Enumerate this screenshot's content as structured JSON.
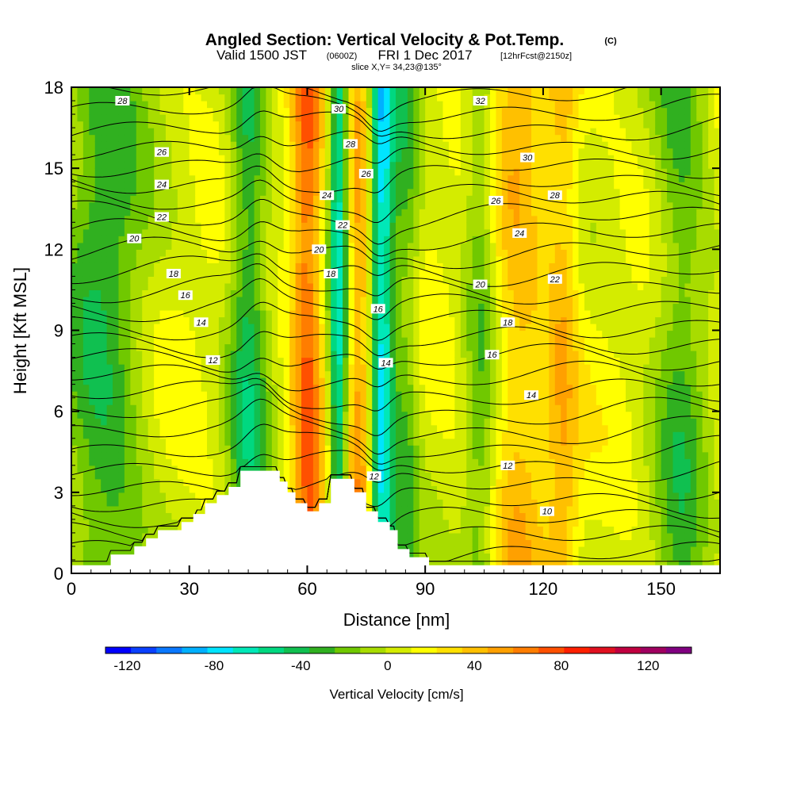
{
  "chart_data": {
    "type": "heatmap",
    "title": {
      "main": "Angled Section: Vertical Velocity & Pot.Temp.",
      "unit": "(C)",
      "valid_a": "Valid 1500 JST",
      "valid_b": "(0600Z)",
      "valid_c": "FRI 1 Dec 2017",
      "valid_d": "[12hrFcst@2150z]",
      "slice": "slice X,Y= 34,23@135°"
    },
    "xlabel": "Distance [nm]",
    "ylabel": "Height [Kft MSL]",
    "xlim": [
      0,
      165
    ],
    "ylim": [
      0,
      18
    ],
    "x_ticks": [
      0,
      30,
      60,
      90,
      120,
      150
    ],
    "y_ticks": [
      0,
      3,
      6,
      9,
      12,
      15,
      18
    ],
    "colorbar": {
      "label": "Vertical Velocity [cm/s]",
      "tick_values": [
        -120,
        -80,
        -40,
        0,
        40,
        80,
        120
      ],
      "tick_labels": [
        "-120",
        "-80",
        "-40",
        "0",
        "40",
        "80",
        "120"
      ],
      "colors": [
        "#0000ff",
        "#0a40ff",
        "#0a78ff",
        "#00b0ff",
        "#00e4ff",
        "#00e8b8",
        "#00d880",
        "#10c050",
        "#30b020",
        "#70c800",
        "#a8dc00",
        "#d4ec00",
        "#ffff00",
        "#ffe000",
        "#ffc000",
        "#ffa000",
        "#ff7d00",
        "#ff5000",
        "#ff2000",
        "#e01020",
        "#c00040",
        "#a00060",
        "#800080"
      ],
      "range": [
        -130,
        140
      ]
    },
    "velocity_columns": [
      {
        "x": 8,
        "w": 11,
        "v": -42
      },
      {
        "x": 45,
        "w": 5,
        "v": -48
      },
      {
        "x": 60,
        "w": 4,
        "v": 60
      },
      {
        "x": 68,
        "w": 2.5,
        "v": -75
      },
      {
        "x": 73,
        "w": 3.5,
        "v": 40
      },
      {
        "x": 79,
        "w": 3,
        "v": -85
      },
      {
        "x": 85,
        "w": 3.5,
        "v": -32
      },
      {
        "x": 104,
        "w": 4,
        "v": -30
      },
      {
        "x": 114,
        "w": 7,
        "v": 30
      },
      {
        "x": 125,
        "w": 4,
        "v": 30
      },
      {
        "x": 155,
        "w": 7,
        "v": -35
      }
    ],
    "terrain": [
      [
        0,
        0.3
      ],
      [
        10,
        0.3
      ],
      [
        10,
        0.7
      ],
      [
        16,
        0.7
      ],
      [
        16,
        1.0
      ],
      [
        19,
        1.0
      ],
      [
        19,
        1.3
      ],
      [
        22,
        1.3
      ],
      [
        22,
        1.6
      ],
      [
        28,
        1.6
      ],
      [
        28,
        1.9
      ],
      [
        31,
        1.9
      ],
      [
        31,
        2.2
      ],
      [
        34,
        2.2
      ],
      [
        34,
        2.6
      ],
      [
        37,
        2.6
      ],
      [
        37,
        2.9
      ],
      [
        40,
        2.9
      ],
      [
        40,
        3.2
      ],
      [
        43,
        3.2
      ],
      [
        43,
        3.8
      ],
      [
        53,
        3.8
      ],
      [
        53,
        3.4
      ],
      [
        55,
        3.4
      ],
      [
        55,
        3.0
      ],
      [
        57,
        3.0
      ],
      [
        57,
        2.6
      ],
      [
        60,
        2.6
      ],
      [
        60,
        2.3
      ],
      [
        63,
        2.3
      ],
      [
        63,
        2.6
      ],
      [
        66,
        2.6
      ],
      [
        66,
        3.5
      ],
      [
        72,
        3.5
      ],
      [
        72,
        3.0
      ],
      [
        75,
        3.0
      ],
      [
        75,
        2.3
      ],
      [
        78,
        2.3
      ],
      [
        78,
        1.9
      ],
      [
        81,
        1.9
      ],
      [
        81,
        1.6
      ],
      [
        83,
        1.6
      ],
      [
        83,
        0.9
      ],
      [
        86,
        0.9
      ],
      [
        86,
        0.6
      ],
      [
        91,
        0.6
      ],
      [
        91,
        0.3
      ],
      [
        165,
        0.3
      ]
    ],
    "contour_levels": [
      8,
      9,
      10,
      11,
      12,
      13,
      14,
      15,
      16,
      17,
      18,
      19,
      20,
      21,
      22,
      23,
      24,
      25,
      26,
      27,
      28,
      29,
      30,
      31,
      32,
      33,
      34,
      35
    ],
    "contour_labels": [
      {
        "text": "28",
        "x": 13,
        "y": 17.5
      },
      {
        "text": "26",
        "x": 23,
        "y": 15.6
      },
      {
        "text": "24",
        "x": 23,
        "y": 14.4
      },
      {
        "text": "22",
        "x": 23,
        "y": 13.2
      },
      {
        "text": "20",
        "x": 16,
        "y": 12.4
      },
      {
        "text": "18",
        "x": 26,
        "y": 11.1
      },
      {
        "text": "16",
        "x": 29,
        "y": 10.3
      },
      {
        "text": "14",
        "x": 33,
        "y": 9.3
      },
      {
        "text": "12",
        "x": 36,
        "y": 7.9
      },
      {
        "text": "30",
        "x": 68,
        "y": 17.2
      },
      {
        "text": "28",
        "x": 71,
        "y": 15.9
      },
      {
        "text": "26",
        "x": 75,
        "y": 14.8
      },
      {
        "text": "24",
        "x": 65,
        "y": 14.0
      },
      {
        "text": "22",
        "x": 69,
        "y": 12.9
      },
      {
        "text": "20",
        "x": 63,
        "y": 12.0
      },
      {
        "text": "18",
        "x": 66,
        "y": 11.1
      },
      {
        "text": "16",
        "x": 78,
        "y": 9.8
      },
      {
        "text": "14",
        "x": 80,
        "y": 7.8
      },
      {
        "text": "12",
        "x": 77,
        "y": 3.6
      },
      {
        "text": "32",
        "x": 104,
        "y": 17.5
      },
      {
        "text": "30",
        "x": 116,
        "y": 15.4
      },
      {
        "text": "28",
        "x": 123,
        "y": 14.0
      },
      {
        "text": "26",
        "x": 108,
        "y": 13.8
      },
      {
        "text": "24",
        "x": 114,
        "y": 12.6
      },
      {
        "text": "22",
        "x": 123,
        "y": 10.9
      },
      {
        "text": "20",
        "x": 104,
        "y": 10.7
      },
      {
        "text": "18",
        "x": 111,
        "y": 9.3
      },
      {
        "text": "16",
        "x": 107,
        "y": 8.1
      },
      {
        "text": "14",
        "x": 117,
        "y": 6.6
      },
      {
        "text": "12",
        "x": 111,
        "y": 4.0
      },
      {
        "text": "10",
        "x": 121,
        "y": 2.3
      }
    ],
    "grid": false
  }
}
